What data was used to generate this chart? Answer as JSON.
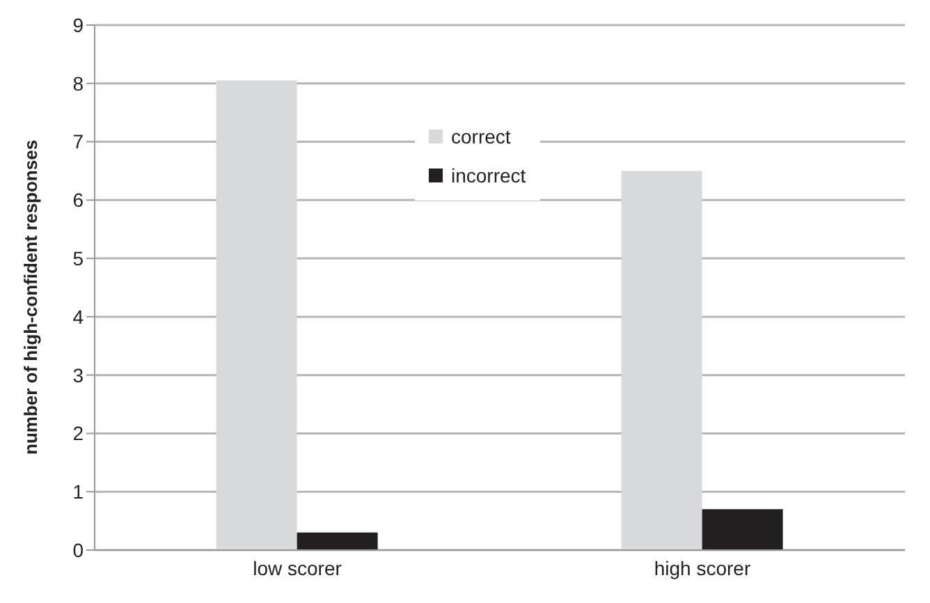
{
  "chart_data": {
    "type": "bar",
    "ylabel": "number of high-confident responses",
    "categories": [
      "low scorer",
      "high scorer"
    ],
    "series": [
      {
        "name": "correct",
        "color": "#d9dadb",
        "values": [
          8.05,
          6.5
        ]
      },
      {
        "name": "incorrect",
        "color": "#231f20",
        "values": [
          0.3,
          0.7
        ]
      }
    ],
    "ylim": [
      0,
      9
    ],
    "yticks": [
      0,
      1,
      2,
      3,
      4,
      5,
      6,
      7,
      8,
      9
    ],
    "grid": "y",
    "legend": "top"
  }
}
